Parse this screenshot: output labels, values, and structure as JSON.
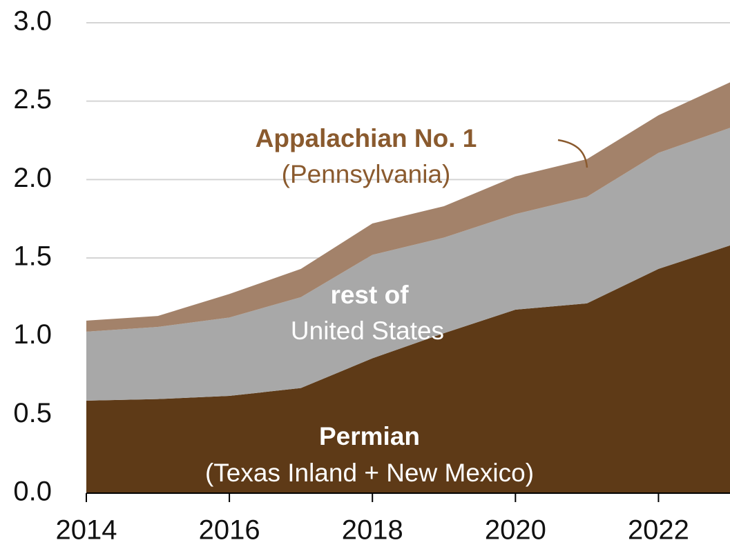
{
  "chart_data": {
    "type": "stacked_area",
    "x": [
      2014,
      2015,
      2016,
      2017,
      2018,
      2019,
      2020,
      2021,
      2022,
      2023
    ],
    "xlim": [
      2014,
      2023
    ],
    "xticks": [
      2014,
      2016,
      2018,
      2020,
      2022
    ],
    "ylim": [
      0,
      3
    ],
    "yticks": [
      {
        "value": 0,
        "label": "0.0"
      },
      {
        "value": 0.5,
        "label": "0.5"
      },
      {
        "value": 1,
        "label": "1.0"
      },
      {
        "value": 1.5,
        "label": "1.5"
      },
      {
        "value": 2,
        "label": "2.0"
      },
      {
        "value": 2.5,
        "label": "2.5"
      },
      {
        "value": 3,
        "label": "3.0"
      }
    ],
    "grid": true,
    "series": [
      {
        "label_lines": [
          "Permian",
          "(Texas Inland + New Mexico)"
        ],
        "color": "#5e3a17",
        "label_color": "#ffffff",
        "values": [
          0.59,
          0.6,
          0.62,
          0.67,
          0.86,
          1.02,
          1.17,
          1.21,
          1.43,
          1.58
        ]
      },
      {
        "label_lines": [
          "rest of",
          "United States"
        ],
        "color": "#a8a8a8",
        "label_color": "#ffffff",
        "values": [
          0.44,
          0.46,
          0.5,
          0.58,
          0.66,
          0.61,
          0.61,
          0.68,
          0.74,
          0.75
        ]
      },
      {
        "label_lines": [
          "Appalachian No. 1",
          "(Pennsylvania)"
        ],
        "color": "#a3826a",
        "label_color": "#8a5a2e",
        "values": [
          0.07,
          0.07,
          0.15,
          0.18,
          0.2,
          0.2,
          0.24,
          0.24,
          0.24,
          0.29
        ]
      }
    ]
  }
}
